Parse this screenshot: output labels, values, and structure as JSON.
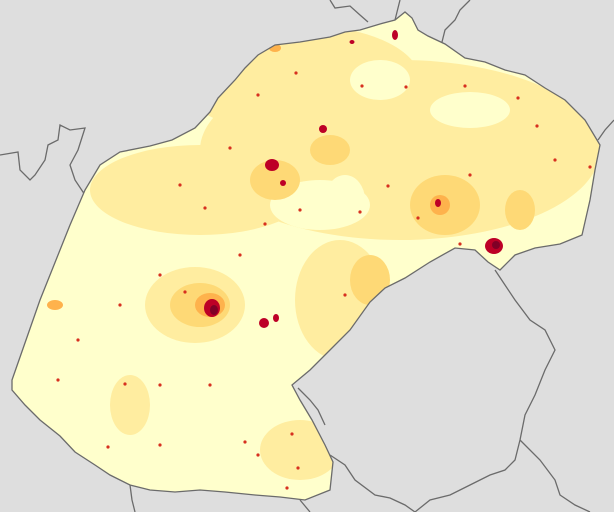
{
  "map": {
    "background_color": "#dedede",
    "border_color": "#6b6b6b",
    "density_colors": {
      "very_low": "#ffffcc",
      "low": "#ffeda0",
      "medium": "#fed976",
      "high": "#feb24c",
      "very_high": "#f03b20",
      "highest": "#bd0026",
      "core": "#800026"
    }
  }
}
